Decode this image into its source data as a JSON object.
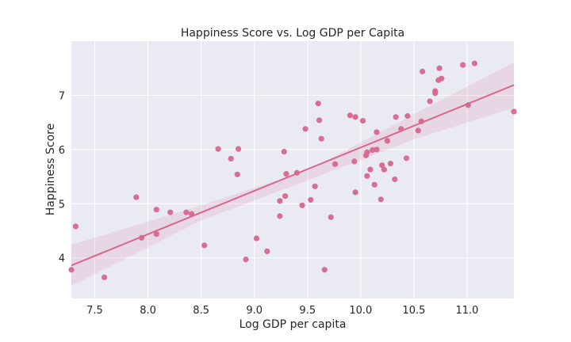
{
  "chart_data": {
    "type": "scatter",
    "title": "Happiness Score vs. Log GDP per Capita",
    "xlabel": "Log GDP per capita",
    "ylabel": "Happiness Score",
    "xlim": [
      7.28,
      11.44
    ],
    "ylim": [
      3.25,
      8.0
    ],
    "x_ticks": [
      7.5,
      8.0,
      8.5,
      9.0,
      9.5,
      10.0,
      10.5,
      11.0
    ],
    "x_tick_labels": [
      "7.5",
      "8.0",
      "8.5",
      "9.0",
      "9.5",
      "10.0",
      "10.5",
      "11.0"
    ],
    "y_ticks": [
      4,
      5,
      6,
      7
    ],
    "y_tick_labels": [
      "4",
      "5",
      "6",
      "7"
    ],
    "grid": true,
    "background_color": "#eaeaf2",
    "point_color": "#d6678f",
    "regression": {
      "line": [
        [
          7.28,
          3.86
        ],
        [
          11.44,
          7.19
        ]
      ],
      "ci_upper": [
        [
          7.28,
          4.24
        ],
        [
          8.5,
          4.97
        ],
        [
          9.5,
          5.61
        ],
        [
          10.5,
          6.65
        ],
        [
          11.44,
          7.61
        ]
      ],
      "ci_lower": [
        [
          7.28,
          3.48
        ],
        [
          8.5,
          4.69
        ],
        [
          9.5,
          5.43
        ],
        [
          10.5,
          6.19
        ],
        [
          11.44,
          6.77
        ]
      ]
    },
    "points": [
      {
        "x": 7.28,
        "y": 3.78
      },
      {
        "x": 7.32,
        "y": 4.58
      },
      {
        "x": 7.59,
        "y": 3.64
      },
      {
        "x": 7.89,
        "y": 5.12
      },
      {
        "x": 7.94,
        "y": 4.37
      },
      {
        "x": 8.08,
        "y": 4.89
      },
      {
        "x": 8.08,
        "y": 4.44
      },
      {
        "x": 8.21,
        "y": 4.84
      },
      {
        "x": 8.36,
        "y": 4.84
      },
      {
        "x": 8.41,
        "y": 4.81
      },
      {
        "x": 8.53,
        "y": 4.23
      },
      {
        "x": 8.66,
        "y": 6.01
      },
      {
        "x": 8.78,
        "y": 5.83
      },
      {
        "x": 8.84,
        "y": 5.54
      },
      {
        "x": 8.85,
        "y": 6.01
      },
      {
        "x": 8.92,
        "y": 3.97
      },
      {
        "x": 9.02,
        "y": 4.36
      },
      {
        "x": 9.12,
        "y": 4.12
      },
      {
        "x": 9.24,
        "y": 5.05
      },
      {
        "x": 9.24,
        "y": 4.77
      },
      {
        "x": 9.28,
        "y": 5.96
      },
      {
        "x": 9.29,
        "y": 5.14
      },
      {
        "x": 9.3,
        "y": 5.55
      },
      {
        "x": 9.4,
        "y": 5.57
      },
      {
        "x": 9.45,
        "y": 4.97
      },
      {
        "x": 9.48,
        "y": 6.38
      },
      {
        "x": 9.53,
        "y": 5.07
      },
      {
        "x": 9.57,
        "y": 5.32
      },
      {
        "x": 9.6,
        "y": 6.85
      },
      {
        "x": 9.61,
        "y": 6.54
      },
      {
        "x": 9.63,
        "y": 6.2
      },
      {
        "x": 9.66,
        "y": 3.78
      },
      {
        "x": 9.72,
        "y": 4.75
      },
      {
        "x": 9.76,
        "y": 5.73
      },
      {
        "x": 9.9,
        "y": 6.63
      },
      {
        "x": 9.94,
        "y": 5.78
      },
      {
        "x": 9.95,
        "y": 6.6
      },
      {
        "x": 9.95,
        "y": 5.21
      },
      {
        "x": 10.02,
        "y": 6.53
      },
      {
        "x": 10.05,
        "y": 5.89
      },
      {
        "x": 10.06,
        "y": 5.95
      },
      {
        "x": 10.06,
        "y": 5.51
      },
      {
        "x": 10.09,
        "y": 5.63
      },
      {
        "x": 10.11,
        "y": 5.99
      },
      {
        "x": 10.13,
        "y": 5.35
      },
      {
        "x": 10.15,
        "y": 6.0
      },
      {
        "x": 10.15,
        "y": 6.32
      },
      {
        "x": 10.19,
        "y": 5.08
      },
      {
        "x": 10.2,
        "y": 5.71
      },
      {
        "x": 10.22,
        "y": 5.63
      },
      {
        "x": 10.25,
        "y": 6.16
      },
      {
        "x": 10.28,
        "y": 5.74
      },
      {
        "x": 10.32,
        "y": 5.45
      },
      {
        "x": 10.33,
        "y": 6.6
      },
      {
        "x": 10.38,
        "y": 6.38
      },
      {
        "x": 10.43,
        "y": 5.84
      },
      {
        "x": 10.44,
        "y": 6.62
      },
      {
        "x": 10.54,
        "y": 6.35
      },
      {
        "x": 10.57,
        "y": 6.52
      },
      {
        "x": 10.58,
        "y": 7.44
      },
      {
        "x": 10.65,
        "y": 6.89
      },
      {
        "x": 10.7,
        "y": 7.08
      },
      {
        "x": 10.7,
        "y": 7.04
      },
      {
        "x": 10.73,
        "y": 7.28
      },
      {
        "x": 10.74,
        "y": 7.5
      },
      {
        "x": 10.76,
        "y": 7.31
      },
      {
        "x": 10.96,
        "y": 7.56
      },
      {
        "x": 11.01,
        "y": 6.82
      },
      {
        "x": 11.07,
        "y": 7.59
      },
      {
        "x": 11.44,
        "y": 6.7
      }
    ]
  }
}
